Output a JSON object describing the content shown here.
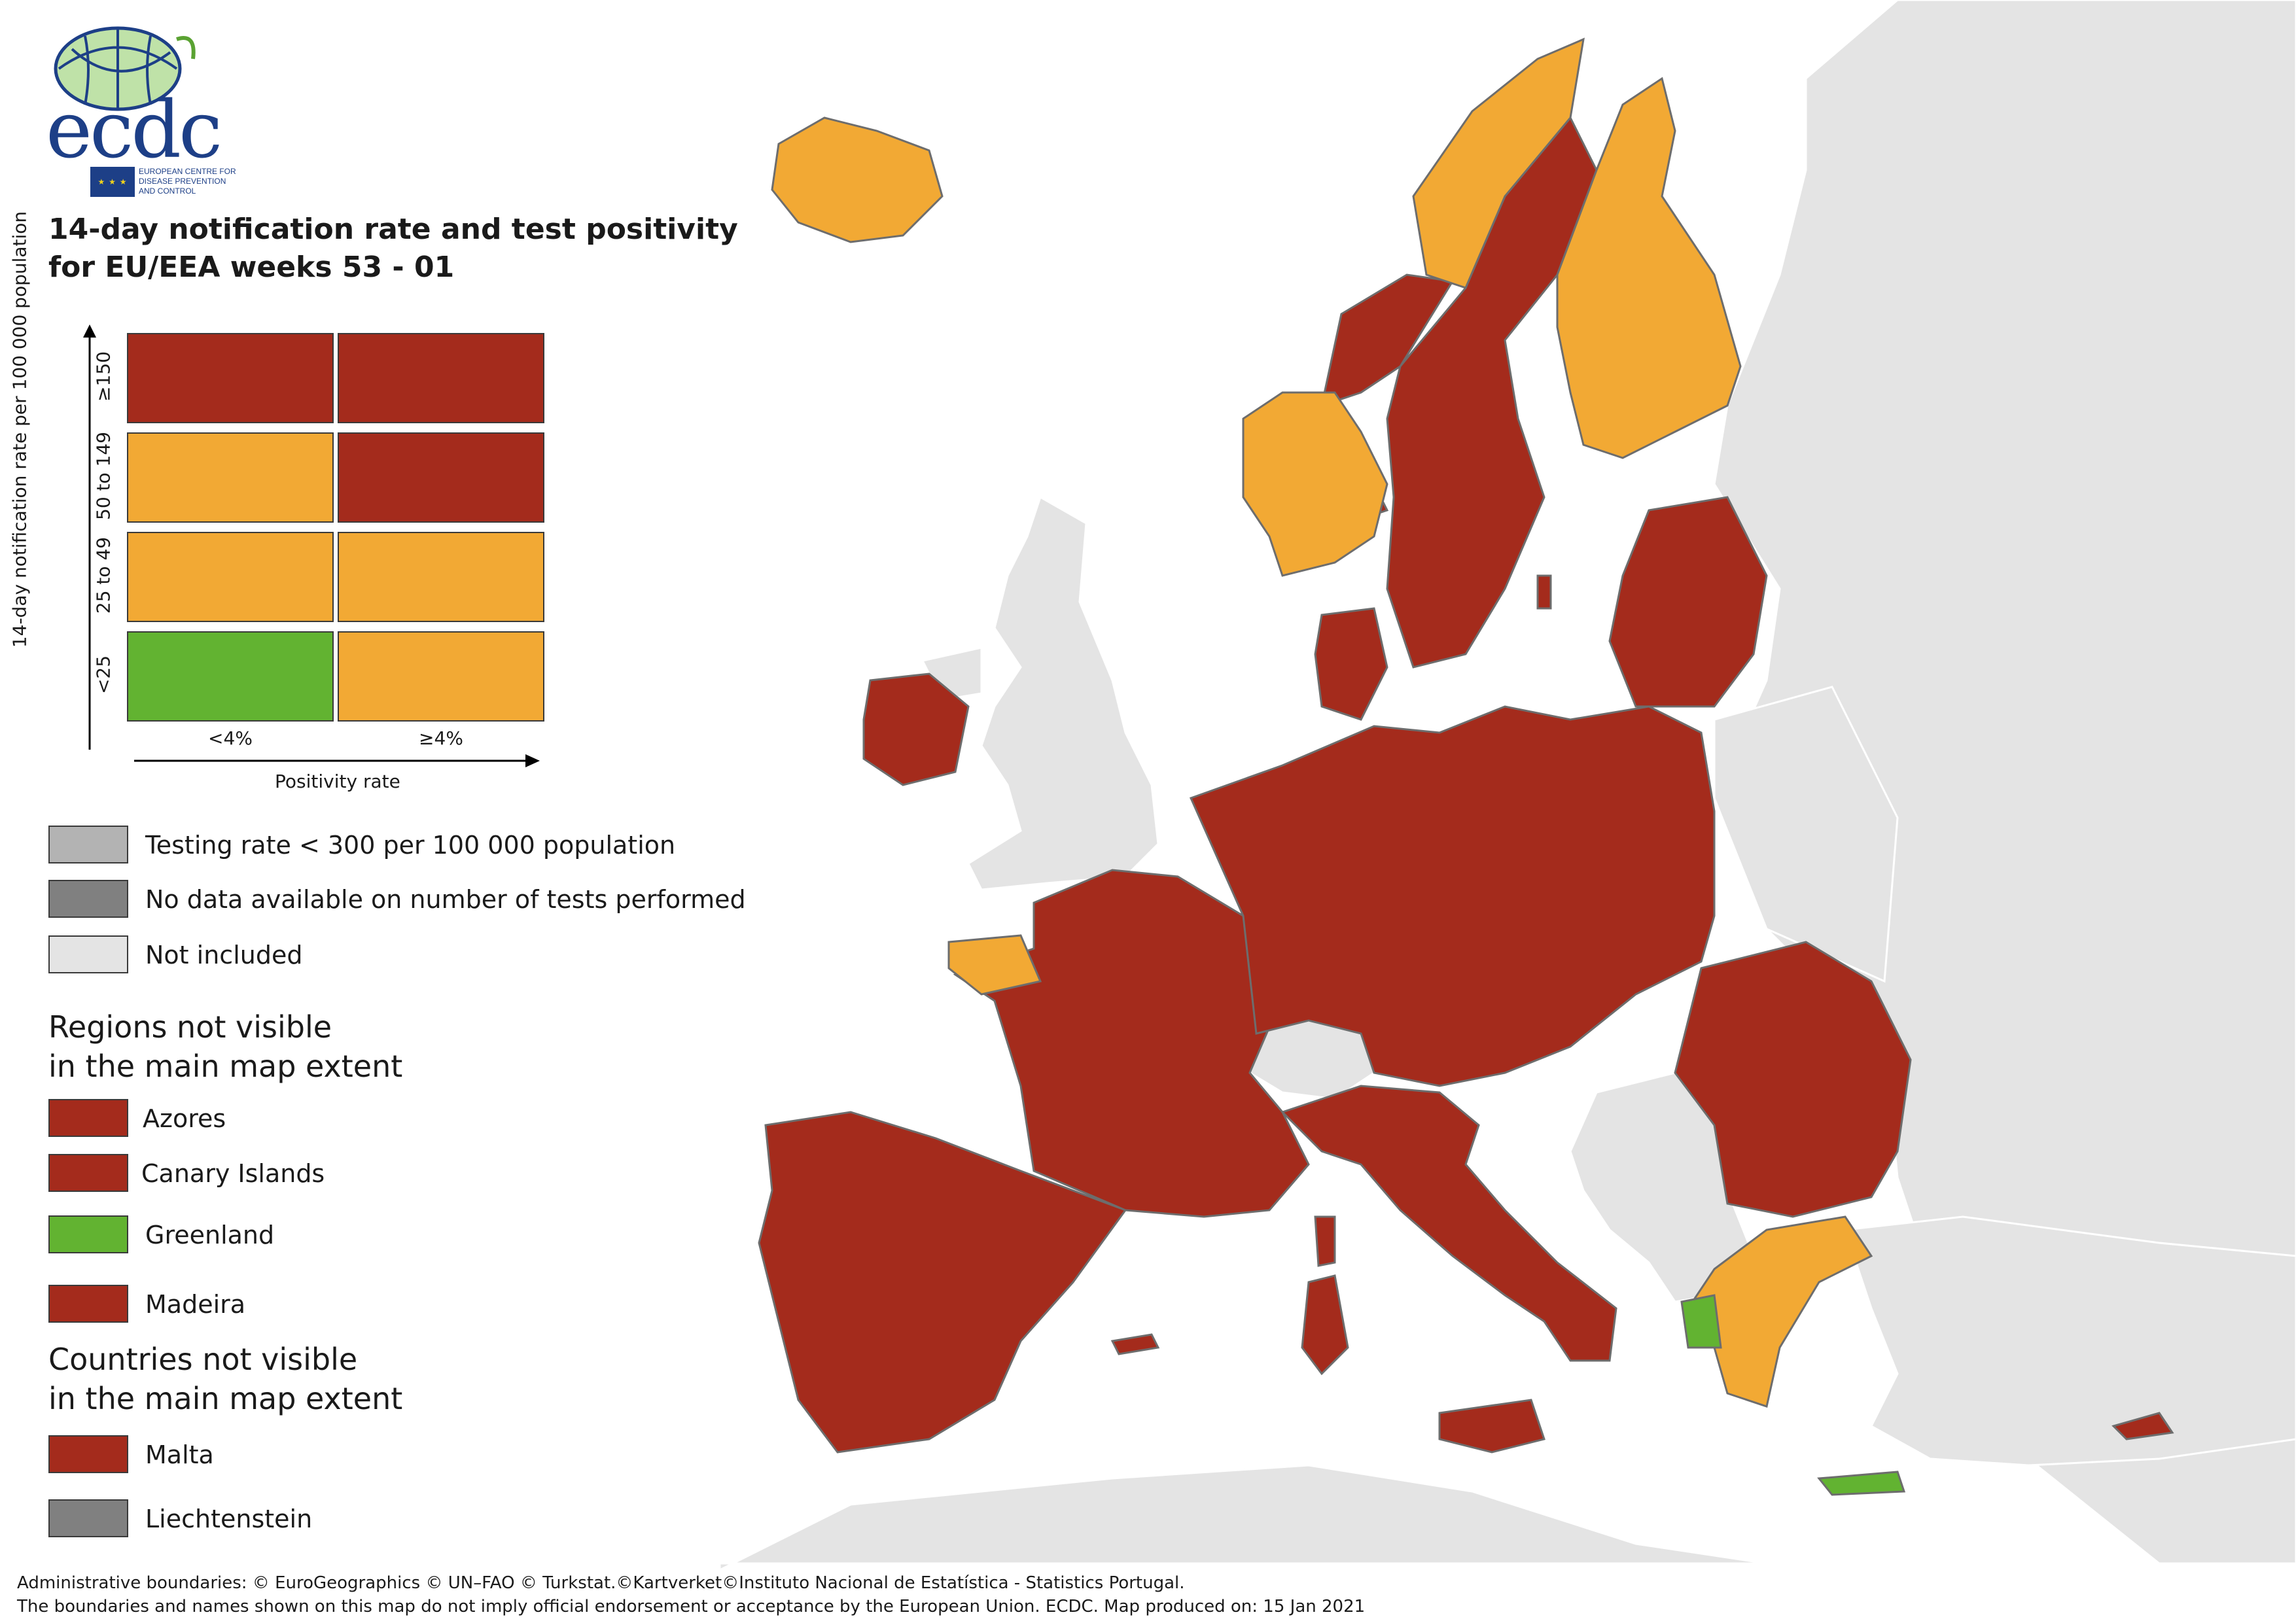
{
  "logo": {
    "wordmark": "ecdc",
    "subtitle_lines": [
      "EUROPEAN CENTRE FOR",
      "DISEASE PREVENTION",
      "AND CONTROL"
    ]
  },
  "title_lines": [
    "14-day notification rate and test positivity",
    "for EU/EEA weeks 53 - 01"
  ],
  "matrix": {
    "y_axis_title": "14-day notification rate per 100 000 population",
    "x_axis_title": "Positivity rate",
    "row_labels": [
      "≥150",
      "50 to 149",
      "25 to 49",
      "<25"
    ],
    "col_labels": [
      "<4%",
      "≥4%"
    ],
    "cells": [
      [
        "#a42b1c",
        "#a42b1c"
      ],
      [
        "#f2a934",
        "#a42b1c"
      ],
      [
        "#f2a934",
        "#f2a934"
      ],
      [
        "#62b331",
        "#f2a934"
      ]
    ]
  },
  "status_legend": [
    {
      "label": "Testing rate < 300 per 100 000 population",
      "color": "#b3b3b3"
    },
    {
      "label": "No data available on number of tests performed",
      "color": "#808080"
    },
    {
      "label": "Not included",
      "color": "#e4e4e4"
    }
  ],
  "regions_heading": [
    "Regions not visible",
    "in the main map extent"
  ],
  "regions": [
    {
      "label": "Azores",
      "color": "#a42b1c"
    },
    {
      "label": "Canary Islands",
      "color": "#a42b1c"
    },
    {
      "label": "Greenland",
      "color": "#62b331"
    },
    {
      "label": "Madeira",
      "color": "#a42b1c"
    }
  ],
  "countries_heading": [
    "Countries not visible",
    "in the main map extent"
  ],
  "countries": [
    {
      "label": "Malta",
      "color": "#a42b1c"
    },
    {
      "label": "Liechtenstein",
      "color": "#808080"
    }
  ],
  "colors": {
    "dark_red": "#a42b1c",
    "orange": "#f2a934",
    "green": "#62b331",
    "not_included": "#e4e4e4",
    "sea": "#ffffff"
  },
  "footer_lines": [
    "Administrative boundaries: © EuroGeographics © UN–FAO © Turkstat.©Kartverket©Instituto Nacional de Estatística - Statistics Portugal.",
    "The boundaries and names shown on this map do not imply official endorsement or acceptance by the European Union. ECDC. Map produced on: 15 Jan 2021"
  ]
}
